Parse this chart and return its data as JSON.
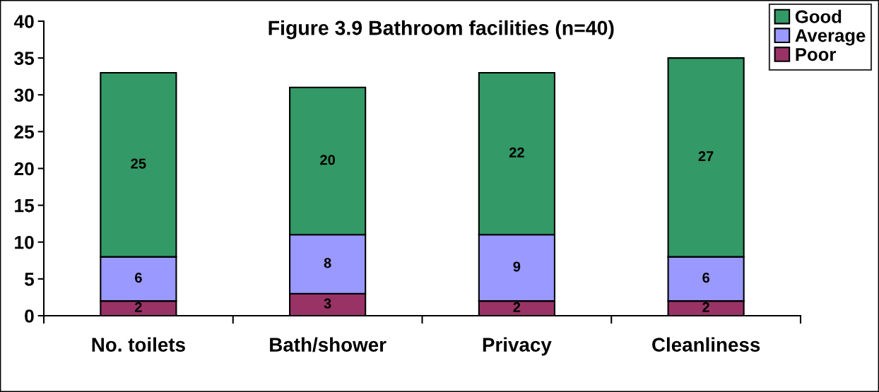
{
  "chart_data": {
    "type": "bar",
    "title": "Figure 3.9 Bathroom facilities (n=40)",
    "categories": [
      "No. toilets",
      "Bath/shower",
      "Privacy",
      "Cleanliness"
    ],
    "series": [
      {
        "name": "Poor",
        "color": "#993366",
        "values": [
          2,
          3,
          2,
          2
        ]
      },
      {
        "name": "Average",
        "color": "#9999ff",
        "values": [
          6,
          8,
          9,
          6
        ]
      },
      {
        "name": "Good",
        "color": "#339966",
        "values": [
          25,
          20,
          22,
          27
        ]
      }
    ],
    "stacked": true,
    "ylim": [
      0,
      40
    ],
    "yticks": [
      0,
      5,
      10,
      15,
      20,
      25,
      30,
      35,
      40
    ],
    "data_labels": true,
    "legend": "top right",
    "grid": false
  }
}
